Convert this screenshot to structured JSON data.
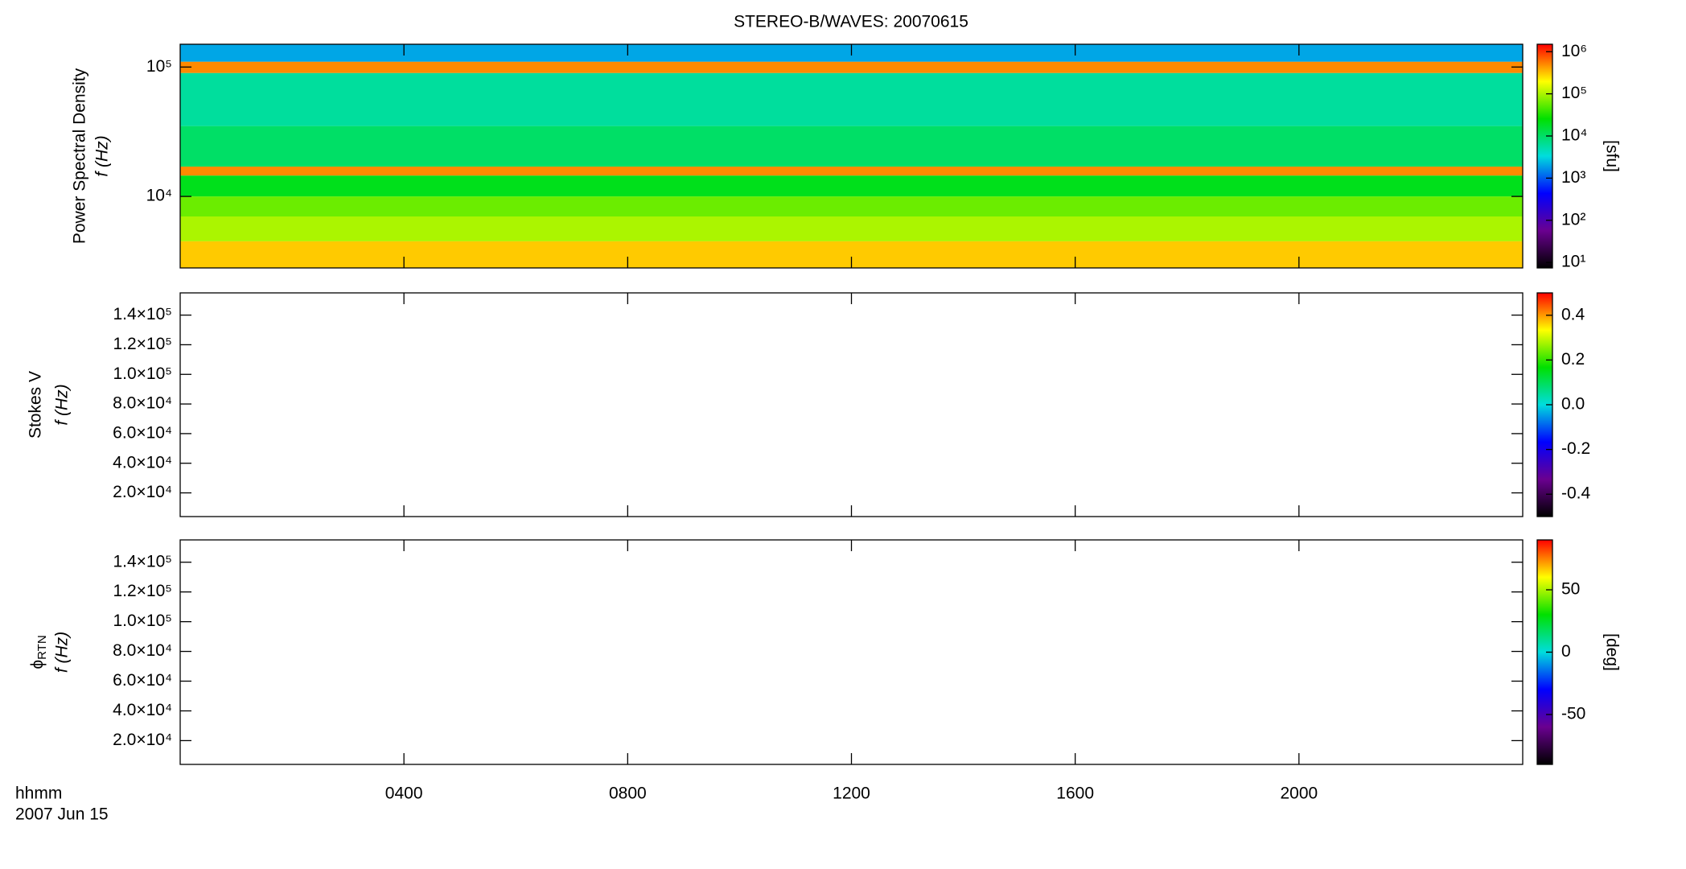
{
  "chart_data": [
    {
      "type": "heatmap",
      "title": "STEREO-B/WAVES: 20070615",
      "ylabel": "Power Spectral Density",
      "ylabel2": "f (Hz)",
      "ylog": true,
      "ylim": [
        2800,
        150000
      ],
      "yticks": [
        {
          "value": 10000,
          "label": "10⁴"
        },
        {
          "value": 100000,
          "label": "10⁵"
        }
      ],
      "xlim": [
        0,
        24
      ],
      "xticks": [
        4,
        8,
        12,
        16,
        20
      ],
      "f_edges": [
        2800,
        4500,
        7000,
        10000,
        14500,
        17000,
        35000,
        90000,
        110000,
        150000
      ],
      "values": [
        300000,
        100000,
        60000,
        20000,
        500000,
        10000,
        6000,
        500000,
        2000
      ],
      "colormap": [
        "#000000",
        "#6a0090",
        "#0000ff",
        "#00dddd",
        "#00e000",
        "#ffff00",
        "#ff0000"
      ],
      "colorbar": {
        "label": "[sfu]",
        "log": true,
        "lim": [
          7.4,
          1500000
        ],
        "ticks": [
          {
            "value": 10,
            "label": "10¹"
          },
          {
            "value": 100,
            "label": "10²"
          },
          {
            "value": 1000,
            "label": "10³"
          },
          {
            "value": 10000,
            "label": "10⁴"
          },
          {
            "value": 100000,
            "label": "10⁵"
          },
          {
            "value": 1000000,
            "label": "10⁶"
          }
        ]
      }
    },
    {
      "type": "heatmap",
      "ylabel": "Stokes V",
      "ylabel2": "f (Hz)",
      "ylog": false,
      "ylim": [
        4000,
        155000
      ],
      "yticks": [
        {
          "value": 20000,
          "label": "2.0×10⁴"
        },
        {
          "value": 40000,
          "label": "4.0×10⁴"
        },
        {
          "value": 60000,
          "label": "6.0×10⁴"
        },
        {
          "value": 80000,
          "label": "8.0×10⁴"
        },
        {
          "value": 100000,
          "label": "1.0×10⁵"
        },
        {
          "value": 120000,
          "label": "1.2×10⁵"
        },
        {
          "value": 140000,
          "label": "1.4×10⁵"
        }
      ],
      "xlim": [
        0,
        24
      ],
      "xticks": [
        4,
        8,
        12,
        16,
        20
      ],
      "colormap": [
        "#000000",
        "#6a0090",
        "#0000ff",
        "#00dddd",
        "#00e000",
        "#ffff00",
        "#ff0000"
      ],
      "colorbar": {
        "log": false,
        "lim": [
          -0.5,
          0.5
        ],
        "ticks": [
          -0.4,
          -0.2,
          {
            "value": 0,
            "label": "0.0"
          },
          0.2,
          0.4
        ]
      }
    },
    {
      "type": "heatmap",
      "ylabel_symbol": "ϕ",
      "ylabel_subscript": "RTN",
      "ylabel2": "f (Hz)",
      "ylog": false,
      "ylim": [
        4000,
        155000
      ],
      "yticks": [
        {
          "value": 20000,
          "label": "2.0×10⁴"
        },
        {
          "value": 40000,
          "label": "4.0×10⁴"
        },
        {
          "value": 60000,
          "label": "6.0×10⁴"
        },
        {
          "value": 80000,
          "label": "8.0×10⁴"
        },
        {
          "value": 100000,
          "label": "1.0×10⁵"
        },
        {
          "value": 120000,
          "label": "1.2×10⁵"
        },
        {
          "value": 140000,
          "label": "1.4×10⁵"
        }
      ],
      "xlim": [
        0,
        24
      ],
      "xticks": [
        {
          "value": 4,
          "label": "0400"
        },
        {
          "value": 8,
          "label": "0800"
        },
        {
          "value": 12,
          "label": "1200"
        },
        {
          "value": 16,
          "label": "1600"
        },
        {
          "value": 20,
          "label": "2000"
        }
      ],
      "xlabel": "hhmm",
      "date": "2007 Jun 15",
      "colormap": [
        "#000000",
        "#6a0090",
        "#0000ff",
        "#00dddd",
        "#00e000",
        "#ffff00",
        "#ff0000"
      ],
      "colorbar": {
        "label": "[deg]",
        "log": false,
        "lim": [
          -90,
          90
        ],
        "ticks": [
          -50,
          0,
          50
        ]
      }
    }
  ]
}
